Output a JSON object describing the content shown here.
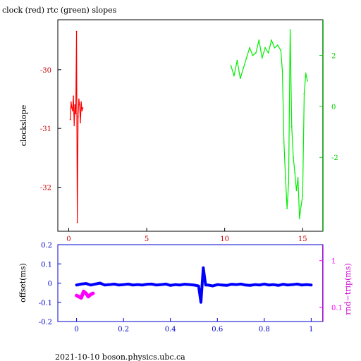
{
  "page": {
    "title": "clock (red) rtc (green) slopes",
    "footer": "2021-10-10  boson.physics.ubc.ca"
  },
  "chart_data": [
    {
      "type": "line",
      "title": "clock (red) rtc (green) slopes",
      "xlabel": "",
      "ylabel": "clockslope",
      "y2label": "",
      "xlim": [
        -0.7,
        16.3
      ],
      "ylim": [
        -32.75,
        -29.15
      ],
      "y2lim": [
        -4.9,
        3.4
      ],
      "xticks": [
        0,
        5,
        10,
        15
      ],
      "yticks": [
        -32,
        -31,
        -30
      ],
      "y2ticks": [
        -2,
        0,
        2
      ],
      "grid": false,
      "colors": {
        "axis": "#000000",
        "x_tick_labels": "#cc0000",
        "y_tick_labels": "#cc0000",
        "y2_axis": "#00cc00",
        "clock_series": "#ff0000",
        "rtc_series": "#00ee00"
      },
      "series": [
        {
          "name": "clock",
          "axis": "left",
          "color": "#ff0000",
          "x": [
            0.1,
            0.15,
            0.2,
            0.25,
            0.3,
            0.35,
            0.4,
            0.45,
            0.5,
            0.55,
            0.6,
            0.65,
            0.7,
            0.75,
            0.8,
            0.85,
            0.9
          ],
          "y": [
            -30.85,
            -30.55,
            -30.65,
            -30.7,
            -30.45,
            -30.95,
            -30.6,
            -30.75,
            -29.35,
            -32.6,
            -30.8,
            -30.5,
            -30.6,
            -30.9,
            -30.55,
            -30.7,
            -30.65
          ]
        },
        {
          "name": "rtc",
          "axis": "right",
          "color": "#00ee00",
          "x": [
            10.4,
            10.6,
            10.8,
            11.0,
            11.2,
            11.4,
            11.6,
            11.8,
            12.0,
            12.2,
            12.4,
            12.6,
            12.8,
            13.0,
            13.2,
            13.4,
            13.6,
            13.7,
            13.8,
            13.9,
            14.0,
            14.1,
            14.2,
            14.3,
            14.4,
            14.5,
            14.6,
            14.7,
            14.8,
            14.9,
            15.0,
            15.1,
            15.2,
            15.3
          ],
          "y": [
            1.6,
            1.2,
            1.8,
            1.1,
            1.5,
            1.9,
            2.3,
            2.0,
            2.1,
            2.6,
            1.9,
            2.3,
            2.1,
            2.6,
            2.3,
            2.4,
            2.2,
            1.4,
            -1.4,
            -2.8,
            -4.0,
            -3.0,
            3.0,
            -0.8,
            -2.0,
            -2.6,
            -3.3,
            -2.8,
            -4.4,
            -3.9,
            -3.5,
            0.5,
            1.3,
            1.0
          ]
        }
      ]
    },
    {
      "type": "scatter",
      "xlabel": "",
      "ylabel": "offset(ms)",
      "y2label": "rnd−trip(ms)",
      "xlim": [
        -0.08,
        1.05
      ],
      "ylim": [
        -0.2,
        0.2
      ],
      "y2lim": [
        0.05,
        2.2
      ],
      "y2scale": "log",
      "xticks": [
        0,
        0.2,
        0.4,
        0.6,
        0.8,
        1
      ],
      "yticks": [
        -0.2,
        -0.1,
        0,
        0.1,
        0.2
      ],
      "y2ticks": [
        0.1,
        1
      ],
      "grid": false,
      "colors": {
        "axis": "#0000cc",
        "offset_series": "#0000ff",
        "roundtrip_series": "#ff00ff"
      },
      "series": [
        {
          "name": "offset",
          "axis": "left",
          "color": "#0000ff",
          "x": [
            0,
            0.02,
            0.04,
            0.06,
            0.08,
            0.1,
            0.12,
            0.14,
            0.16,
            0.18,
            0.2,
            0.22,
            0.24,
            0.26,
            0.28,
            0.3,
            0.32,
            0.34,
            0.36,
            0.38,
            0.4,
            0.42,
            0.44,
            0.46,
            0.48,
            0.5,
            0.52,
            0.53,
            0.54,
            0.55,
            0.56,
            0.58,
            0.6,
            0.62,
            0.64,
            0.66,
            0.68,
            0.7,
            0.72,
            0.74,
            0.76,
            0.78,
            0.8,
            0.82,
            0.84,
            0.86,
            0.88,
            0.9,
            0.92,
            0.94,
            0.96,
            0.98,
            1.0
          ],
          "y": [
            -0.01,
            -0.005,
            -0.002,
            -0.01,
            -0.005,
            0.0,
            -0.01,
            -0.008,
            -0.005,
            -0.01,
            -0.008,
            -0.005,
            -0.01,
            -0.008,
            -0.01,
            -0.006,
            -0.005,
            -0.01,
            -0.008,
            -0.005,
            -0.012,
            -0.008,
            -0.01,
            -0.006,
            -0.008,
            -0.01,
            -0.015,
            -0.1,
            0.08,
            -0.01,
            -0.01,
            -0.015,
            -0.008,
            -0.01,
            -0.012,
            -0.006,
            -0.008,
            -0.005,
            -0.01,
            -0.012,
            -0.008,
            -0.01,
            -0.005,
            -0.01,
            -0.008,
            -0.012,
            -0.006,
            -0.01,
            -0.008,
            -0.005,
            -0.01,
            -0.008,
            -0.01
          ]
        },
        {
          "name": "rnd-trip",
          "axis": "right",
          "color": "#ff00ff",
          "x": [
            0.0,
            0.01,
            0.02,
            0.03,
            0.04,
            0.05,
            0.06,
            0.07
          ],
          "y": [
            0.18,
            0.17,
            0.16,
            0.22,
            0.2,
            0.17,
            0.19,
            0.2
          ]
        }
      ]
    }
  ]
}
